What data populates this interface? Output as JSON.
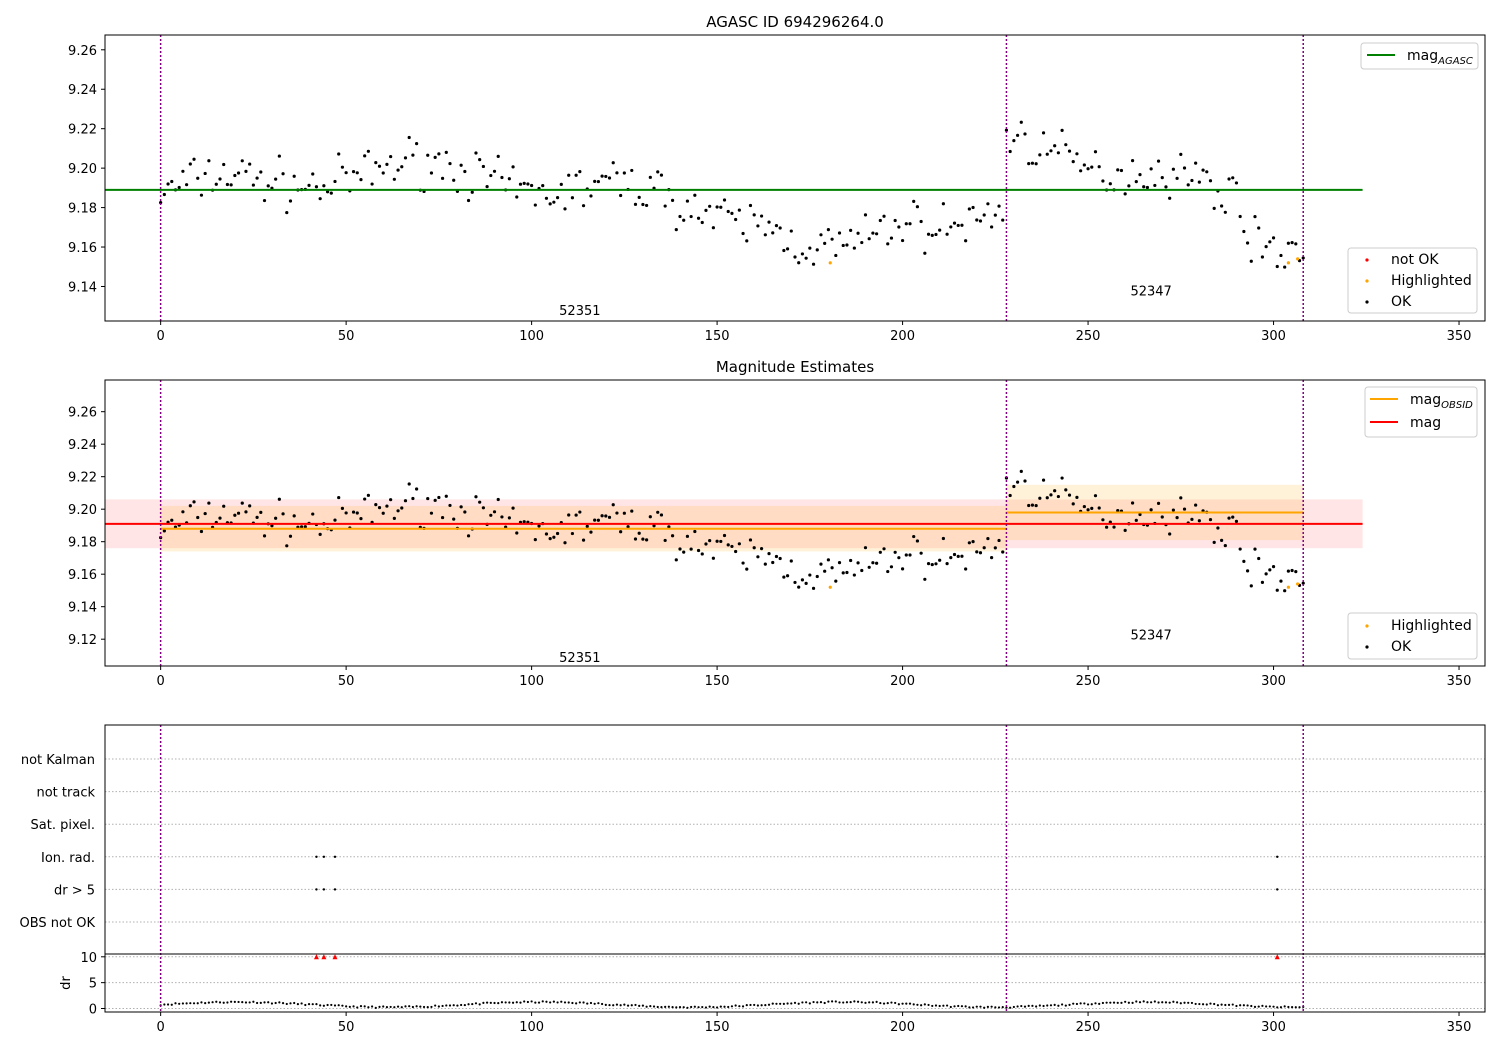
{
  "chart_data": [
    {
      "type": "scatter",
      "title": "AGASC ID 694296264.0",
      "xlim": [
        -15,
        357
      ],
      "ylim": [
        9.1225,
        9.2675
      ],
      "xticks": [
        0,
        50,
        100,
        150,
        200,
        250,
        300,
        350
      ],
      "yticks": [
        9.14,
        9.16,
        9.18,
        9.2,
        9.22,
        9.24,
        9.26
      ],
      "obs_boundaries": [
        0,
        228,
        308
      ],
      "obs_labels": [
        {
          "text": "52351",
          "x": 113,
          "y": 9.128
        },
        {
          "text": "52347",
          "x": 267,
          "y": 9.138
        }
      ],
      "lines": [
        {
          "name": "mag",
          "subscript": "AGASC",
          "color": "#008000",
          "x": [
            -15,
            324
          ],
          "y": 9.189
        }
      ],
      "legend_top": {
        "position": "top-right",
        "entries": [
          {
            "label": "mag",
            "subscript": "AGASC",
            "color": "#008000"
          }
        ]
      },
      "legend_bottom": {
        "position": "lower-right",
        "entries": [
          {
            "label": "not OK",
            "color": "#ff0000"
          },
          {
            "label": "Highlighted",
            "color": "#ffa500"
          },
          {
            "label": "OK",
            "color": "#000000"
          }
        ]
      },
      "highlighted_points": [
        [
          180.5,
          9.152
        ],
        [
          304,
          9.152
        ],
        [
          306.5,
          9.154
        ]
      ],
      "grid": false
    },
    {
      "type": "scatter",
      "title": "Magnitude Estimates",
      "xlim": [
        -15,
        357
      ],
      "ylim": [
        9.1035,
        9.2795
      ],
      "xticks": [
        0,
        50,
        100,
        150,
        200,
        250,
        300,
        350
      ],
      "yticks": [
        9.12,
        9.14,
        9.16,
        9.18,
        9.2,
        9.22,
        9.24,
        9.26
      ],
      "obs_boundaries": [
        0,
        228,
        308
      ],
      "obs_labels": [
        {
          "text": "52351",
          "x": 113,
          "y": 9.109
        },
        {
          "text": "52347",
          "x": 267,
          "y": 9.123
        }
      ],
      "bands": [
        {
          "name": "mag",
          "color": "#ff0000",
          "x": [
            -15,
            324
          ],
          "y": 9.191,
          "band": [
            9.176,
            9.206
          ]
        },
        {
          "name": "mag_OBSID 52351",
          "color": "#ffa500",
          "x": [
            0,
            228
          ],
          "y": 9.188,
          "band": [
            9.174,
            9.202
          ]
        },
        {
          "name": "mag_OBSID 52347",
          "color": "#ffa500",
          "x": [
            228,
            308
          ],
          "y": 9.198,
          "band": [
            9.181,
            9.215
          ]
        }
      ],
      "legend_top": {
        "position": "top-right",
        "entries": [
          {
            "label": "mag",
            "subscript": "OBSID",
            "color": "#ffa500"
          },
          {
            "label": "mag",
            "subscript": "",
            "color": "#ff0000"
          }
        ]
      },
      "legend_bottom": {
        "position": "lower-right",
        "entries": [
          {
            "label": "Highlighted",
            "color": "#ffa500"
          },
          {
            "label": "OK",
            "color": "#000000"
          }
        ]
      },
      "highlighted_points": [
        [
          180.5,
          9.152
        ],
        [
          304,
          9.152
        ],
        [
          306.5,
          9.154
        ]
      ],
      "grid": false
    },
    {
      "type": "scatter",
      "title": "",
      "xlim": [
        -15,
        357
      ],
      "flag_categories": [
        "not Kalman",
        "not track",
        "Sat. pixel.",
        "Ion. rad.",
        "dr > 5",
        "OBS not OK"
      ],
      "flag_points": {
        "Ion. rad.": [
          42,
          44,
          47,
          301
        ],
        "dr > 5": [
          42,
          44,
          47,
          301
        ]
      },
      "dr_ylim": [
        -0.5,
        13
      ],
      "dr_yticks": [
        0,
        5,
        10
      ],
      "dr_ylabel": "dr",
      "dr_clipped_points": [
        [
          42,
          10
        ],
        [
          44,
          10
        ],
        [
          47,
          10
        ],
        [
          301,
          10
        ]
      ],
      "xticks": [
        0,
        50,
        100,
        150,
        200,
        250,
        300,
        350
      ],
      "obs_boundaries": [
        0,
        228,
        308
      ],
      "grid": "y-dotted"
    }
  ]
}
